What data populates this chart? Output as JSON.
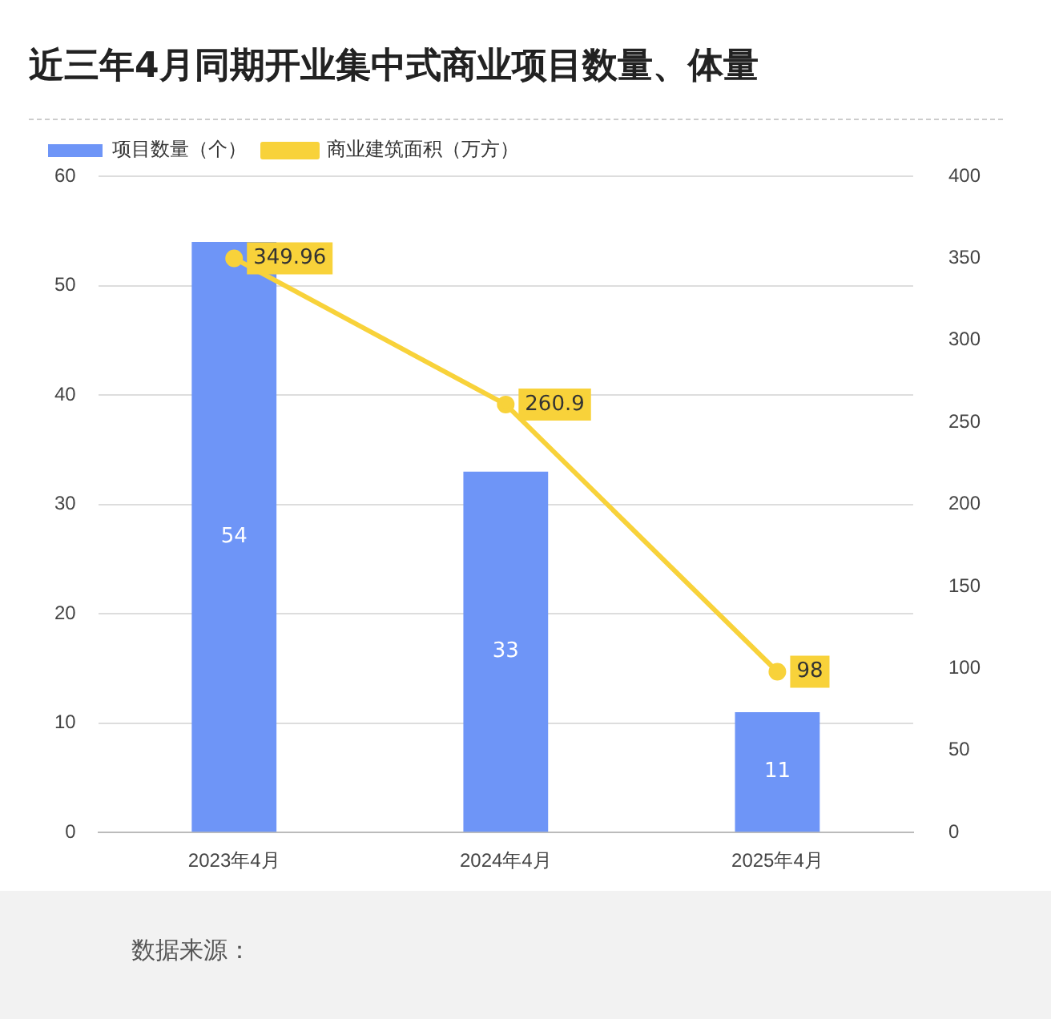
{
  "chart_data": {
    "type": "bar",
    "title": "近三年4月同期开业集中式商业项目数量、体量",
    "categories": [
      "2023年4月",
      "2024年4月",
      "2025年4月"
    ],
    "series": [
      {
        "name": "项目数量（个）",
        "color": "#6e95f7",
        "values": [
          54,
          33,
          11
        ]
      },
      {
        "name": "商业建筑面积（万方）",
        "type": "line",
        "axis": "y2",
        "color": "#f8d23a",
        "values": [
          349.96,
          260.9,
          98
        ]
      }
    ],
    "ylim": [
      0,
      60
    ],
    "yticks": [
      0,
      10,
      20,
      30,
      40,
      50,
      60
    ],
    "y2lim": [
      0,
      400
    ],
    "y2ticks": [
      0,
      50,
      100,
      150,
      200,
      250,
      300,
      350,
      400
    ],
    "grid": "y",
    "legend": "top left",
    "marker": "circle",
    "data_labels": true,
    "annotations": [
      "数据来源："
    ]
  }
}
